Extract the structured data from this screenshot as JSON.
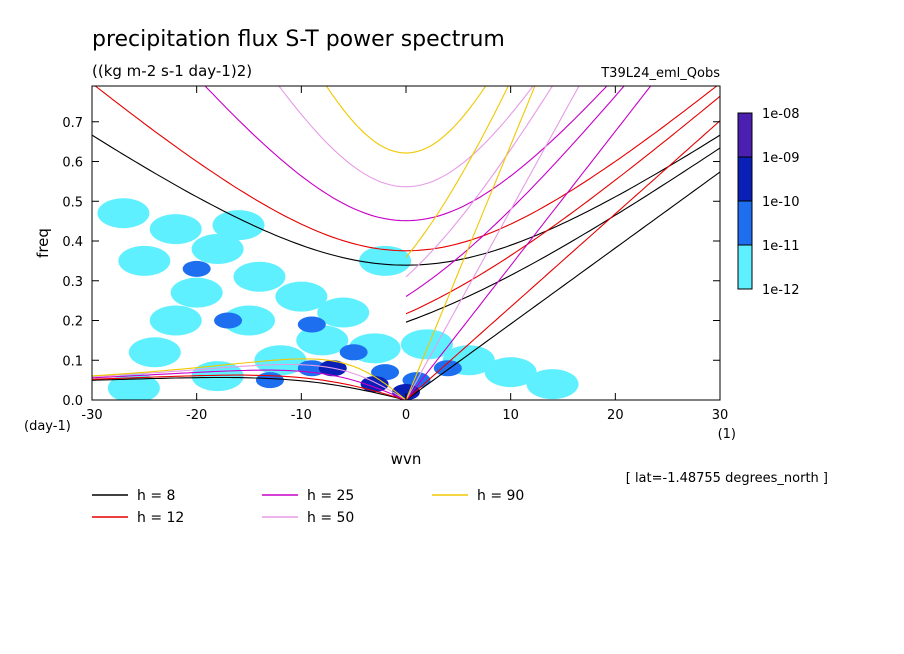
{
  "chart_data": {
    "type": "line",
    "title": "precipitation flux S-T power spectrum",
    "subtitle": "((kg m-2 s-1 day-1)2)",
    "experiment": "T39L24_eml_Qobs",
    "xlabel": "wvn",
    "xunits": "(1)",
    "ylabel": "freq",
    "yunits": "(day-1)",
    "xlim": [
      -30,
      30
    ],
    "ylim": [
      0,
      0.79
    ],
    "xticks": [
      -30,
      -20,
      -10,
      0,
      10,
      20,
      30
    ],
    "xtick_labels": [
      "-30",
      "-20",
      "-10",
      "0",
      "10",
      "20",
      "30"
    ],
    "yticks": [
      0,
      0.1,
      0.2,
      0.3,
      0.4,
      0.5,
      0.6,
      0.7
    ],
    "ytick_labels": [
      "0.0",
      "0.1",
      "0.2",
      "0.3",
      "0.4",
      "0.5",
      "0.6",
      "0.7"
    ],
    "annotation": "[ lat=-1.48755 degrees_north ]",
    "colorbar": {
      "labels": [
        "1e-08",
        "1e-09",
        "1e-10",
        "1e-11",
        "1e-12"
      ],
      "colors": [
        "#4b1fb0",
        "#0a1fb5",
        "#1e6ef0",
        "#5ff0ff"
      ]
    },
    "shading_blobs": [
      {
        "x": -27,
        "y": 0.47,
        "level": 3
      },
      {
        "x": -22,
        "y": 0.43,
        "level": 3
      },
      {
        "x": -25,
        "y": 0.35,
        "level": 3
      },
      {
        "x": -18,
        "y": 0.38,
        "level": 3
      },
      {
        "x": -14,
        "y": 0.31,
        "level": 3
      },
      {
        "x": -20,
        "y": 0.27,
        "level": 3
      },
      {
        "x": -10,
        "y": 0.26,
        "level": 3
      },
      {
        "x": -6,
        "y": 0.22,
        "level": 3
      },
      {
        "x": -15,
        "y": 0.2,
        "level": 3
      },
      {
        "x": -22,
        "y": 0.2,
        "level": 3
      },
      {
        "x": -8,
        "y": 0.15,
        "level": 3
      },
      {
        "x": -3,
        "y": 0.13,
        "level": 3
      },
      {
        "x": 2,
        "y": 0.14,
        "level": 3
      },
      {
        "x": 6,
        "y": 0.1,
        "level": 3
      },
      {
        "x": 10,
        "y": 0.07,
        "level": 3
      },
      {
        "x": 14,
        "y": 0.04,
        "level": 3
      },
      {
        "x": -12,
        "y": 0.1,
        "level": 3
      },
      {
        "x": -18,
        "y": 0.06,
        "level": 3
      },
      {
        "x": -24,
        "y": 0.12,
        "level": 3
      },
      {
        "x": -26,
        "y": 0.03,
        "level": 3
      },
      {
        "x": -2,
        "y": 0.35,
        "level": 3
      },
      {
        "x": -16,
        "y": 0.44,
        "level": 3
      },
      {
        "x": -20,
        "y": 0.33,
        "level": 2
      },
      {
        "x": -9,
        "y": 0.19,
        "level": 2
      },
      {
        "x": -5,
        "y": 0.12,
        "level": 2
      },
      {
        "x": -2,
        "y": 0.07,
        "level": 2
      },
      {
        "x": 1,
        "y": 0.05,
        "level": 2
      },
      {
        "x": -9,
        "y": 0.08,
        "level": 2
      },
      {
        "x": -13,
        "y": 0.05,
        "level": 2
      },
      {
        "x": -17,
        "y": 0.2,
        "level": 2
      },
      {
        "x": 4,
        "y": 0.08,
        "level": 2
      },
      {
        "x": -3,
        "y": 0.04,
        "level": 1
      },
      {
        "x": -7,
        "y": 0.08,
        "level": 1
      },
      {
        "x": 0,
        "y": 0.02,
        "level": 1
      }
    ],
    "series": [
      {
        "name": "h =  8",
        "color": "#000000",
        "equivalent_depth_m": 8
      },
      {
        "name": "h = 12",
        "color": "#e60000",
        "equivalent_depth_m": 12
      },
      {
        "name": "h = 25",
        "color": "#c800c8",
        "equivalent_depth_m": 25
      },
      {
        "name": "h = 50",
        "color": "#e69be6",
        "equivalent_depth_m": 50
      },
      {
        "name": "h = 90",
        "color": "#f0c800",
        "equivalent_depth_m": 90
      }
    ]
  }
}
